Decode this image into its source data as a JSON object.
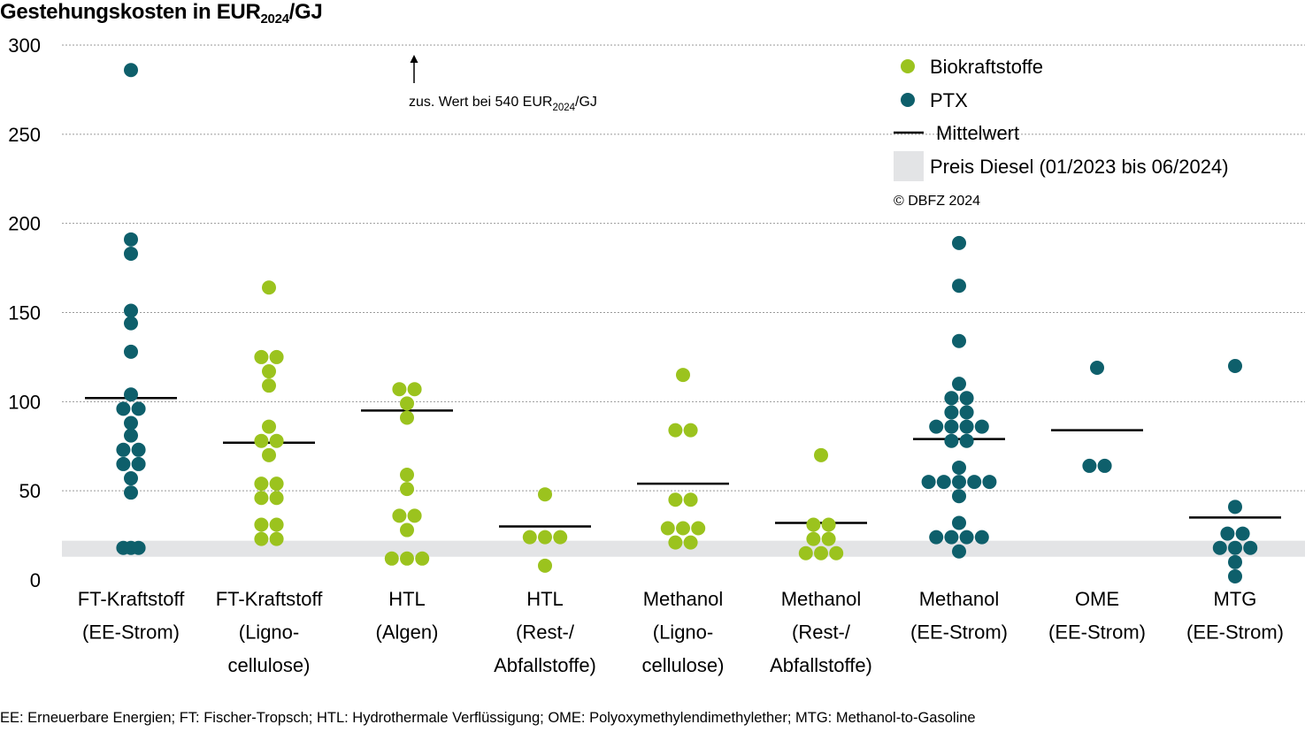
{
  "title": {
    "main": "Gestehungskosten in EUR",
    "sub": "2024",
    "suffix": "/GJ"
  },
  "colors": {
    "bio": "#9bc31e",
    "ptx": "#0e5f6b",
    "mean": "#000000",
    "diesel_band": "#e3e4e6",
    "grid": "#9a9a9a"
  },
  "annotation": {
    "text": "zus. Wert bei 540 EUR",
    "sub": "2024",
    "suffix": "/GJ",
    "arrow": "arrow-up-icon"
  },
  "legend": {
    "items": [
      {
        "label": "Biokraftstoffe",
        "kind": "bio"
      },
      {
        "label": "PTX",
        "kind": "ptx"
      },
      {
        "label": "Mittelwert",
        "kind": "mean"
      },
      {
        "label": "Preis Diesel (01/2023 bis 06/2024)",
        "kind": "band"
      }
    ],
    "copyright": "© DBFZ 2024"
  },
  "footnote": "EE: Erneuerbare Energien; FT: Fischer-Tropsch; HTL: Hydrothermale Verflüssigung; OME: Polyoxymethylendimethylether; MTG: Methanol-to-Gasoline",
  "chart_data": {
    "type": "scatter",
    "ylim": [
      0,
      300
    ],
    "yticks": [
      0,
      50,
      100,
      150,
      200,
      250,
      300
    ],
    "grid": true,
    "legend_position": "top-right",
    "diesel_band": [
      13,
      22
    ],
    "categories": [
      {
        "label": [
          "FT-Kraftstoff",
          "(EE-Strom)"
        ],
        "type": "ptx",
        "mean": 102,
        "points": [
          [
            0,
            286
          ],
          [
            0,
            191
          ],
          [
            0,
            183
          ],
          [
            0,
            151
          ],
          [
            0,
            144
          ],
          [
            0,
            128
          ],
          [
            0,
            104
          ],
          [
            -1,
            96
          ],
          [
            1,
            96
          ],
          [
            0,
            88
          ],
          [
            0,
            81
          ],
          [
            -1,
            73
          ],
          [
            1,
            73
          ],
          [
            -1,
            65
          ],
          [
            1,
            65
          ],
          [
            0,
            57
          ],
          [
            0,
            49
          ],
          [
            -1,
            18
          ],
          [
            0,
            18
          ],
          [
            1,
            18
          ]
        ]
      },
      {
        "label": [
          "FT-Kraftstoff",
          "(Ligno-",
          "cellulose)"
        ],
        "type": "bio",
        "mean": 77,
        "points": [
          [
            0,
            164
          ],
          [
            -1,
            125
          ],
          [
            1,
            125
          ],
          [
            0,
            117
          ],
          [
            0,
            109
          ],
          [
            0,
            86
          ],
          [
            -1,
            78
          ],
          [
            1,
            78
          ],
          [
            0,
            70
          ],
          [
            -1,
            54
          ],
          [
            1,
            54
          ],
          [
            -1,
            46
          ],
          [
            1,
            46
          ],
          [
            -1,
            31
          ],
          [
            1,
            31
          ],
          [
            -1,
            23
          ],
          [
            1,
            23
          ]
        ]
      },
      {
        "label": [
          "HTL",
          "(Algen)"
        ],
        "type": "bio",
        "mean": 95,
        "points": [
          [
            -1,
            107
          ],
          [
            1,
            107
          ],
          [
            0,
            99
          ],
          [
            0,
            91
          ],
          [
            0,
            59
          ],
          [
            0,
            51
          ],
          [
            -1,
            36
          ],
          [
            1,
            36
          ],
          [
            0,
            28
          ],
          [
            -2,
            12
          ],
          [
            0,
            12
          ],
          [
            2,
            12
          ]
        ]
      },
      {
        "label": [
          "HTL",
          "(Rest-/",
          "Abfallstoffe)"
        ],
        "type": "bio",
        "mean": 30,
        "points": [
          [
            0,
            48
          ],
          [
            -2,
            24
          ],
          [
            0,
            24
          ],
          [
            2,
            24
          ],
          [
            0,
            8
          ]
        ]
      },
      {
        "label": [
          "Methanol",
          "(Ligno-",
          "cellulose)"
        ],
        "type": "bio",
        "mean": 54,
        "points": [
          [
            0,
            115
          ],
          [
            -1,
            84
          ],
          [
            1,
            84
          ],
          [
            -1,
            45
          ],
          [
            1,
            45
          ],
          [
            -2,
            29
          ],
          [
            0,
            29
          ],
          [
            2,
            29
          ],
          [
            -1,
            21
          ],
          [
            1,
            21
          ]
        ]
      },
      {
        "label": [
          "Methanol",
          "(Rest-/",
          "Abfallstoffe)"
        ],
        "type": "bio",
        "mean": 32,
        "points": [
          [
            0,
            70
          ],
          [
            -1,
            31
          ],
          [
            1,
            31
          ],
          [
            -1,
            23
          ],
          [
            1,
            23
          ],
          [
            -2,
            15
          ],
          [
            0,
            15
          ],
          [
            2,
            15
          ]
        ]
      },
      {
        "label": [
          "Methanol",
          "(EE-Strom)"
        ],
        "type": "ptx",
        "mean": 79,
        "points": [
          [
            0,
            189
          ],
          [
            0,
            165
          ],
          [
            0,
            134
          ],
          [
            0,
            110
          ],
          [
            -1,
            102
          ],
          [
            1,
            102
          ],
          [
            -1,
            94
          ],
          [
            1,
            94
          ],
          [
            -3,
            86
          ],
          [
            -1,
            86
          ],
          [
            1,
            86
          ],
          [
            3,
            86
          ],
          [
            -1,
            78
          ],
          [
            1,
            78
          ],
          [
            0,
            63
          ],
          [
            -4,
            55
          ],
          [
            -2,
            55
          ],
          [
            0,
            55
          ],
          [
            2,
            55
          ],
          [
            4,
            55
          ],
          [
            0,
            47
          ],
          [
            0,
            32
          ],
          [
            -3,
            24
          ],
          [
            -1,
            24
          ],
          [
            1,
            24
          ],
          [
            3,
            24
          ],
          [
            0,
            16
          ]
        ]
      },
      {
        "label": [
          "OME",
          "(EE-Strom)"
        ],
        "type": "ptx",
        "mean": 84,
        "points": [
          [
            0,
            119
          ],
          [
            -1,
            64
          ],
          [
            1,
            64
          ]
        ]
      },
      {
        "label": [
          "MTG",
          "(EE-Strom)"
        ],
        "type": "ptx",
        "mean": 35,
        "points": [
          [
            0,
            120
          ],
          [
            0,
            41
          ],
          [
            -1,
            26
          ],
          [
            1,
            26
          ],
          [
            -2,
            18
          ],
          [
            0,
            18
          ],
          [
            2,
            18
          ],
          [
            0,
            10
          ],
          [
            0,
            2
          ]
        ]
      }
    ]
  }
}
